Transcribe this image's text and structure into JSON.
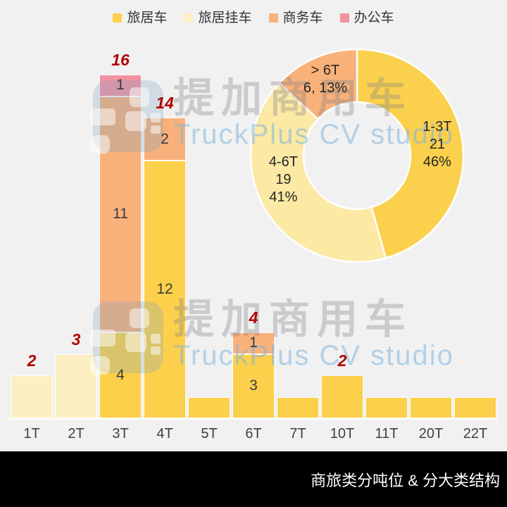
{
  "colors": {
    "background": "#F1F1F2",
    "total_label": "#B20000",
    "segment_label": "#3A3A3A",
    "axis_label": "#404040",
    "footer_bg": "#000000",
    "footer_text": "#FFFFFF"
  },
  "legend": {
    "items": [
      {
        "label": "旅居车",
        "color": "#FCD04B"
      },
      {
        "label": "旅居挂车",
        "color": "#FCF0C3"
      },
      {
        "label": "商务车",
        "color": "#F9B17C"
      },
      {
        "label": "办公车",
        "color": "#F192A1"
      }
    ]
  },
  "watermark": {
    "brand": "提加商用车",
    "subtitle": "TruckPlus CV studio"
  },
  "footer": {
    "title": "商旅类分吨位 & 分大类结构"
  },
  "chart_data": [
    {
      "type": "bar",
      "subtype": "stacked",
      "categories": [
        "1T",
        "2T",
        "3T",
        "4T",
        "5T",
        "6T",
        "7T",
        "10T",
        "11T",
        "20T",
        "22T"
      ],
      "series": [
        {
          "name": "旅居车",
          "color": "#FCD04B",
          "values": [
            0,
            0,
            4,
            12,
            1,
            3,
            1,
            2,
            1,
            1,
            1
          ]
        },
        {
          "name": "旅居挂车",
          "color": "#FCF0C3",
          "values": [
            2,
            3,
            0,
            0,
            0,
            0,
            0,
            0,
            0,
            0,
            0
          ]
        },
        {
          "name": "商务车",
          "color": "#F9B17C",
          "values": [
            0,
            0,
            11,
            2,
            0,
            1,
            0,
            0,
            0,
            0,
            0
          ]
        },
        {
          "name": "办公车",
          "color": "#F192A1",
          "values": [
            0,
            0,
            1,
            0,
            0,
            0,
            0,
            0,
            0,
            0,
            0
          ]
        }
      ],
      "totals": [
        2,
        3,
        16,
        14,
        1,
        4,
        1,
        2,
        1,
        1,
        1
      ],
      "ylim": [
        0,
        16
      ],
      "grid": false,
      "notes": "segment value labels shown only on multi-segment bars; dark-red italic totals shown above bars with total >= 2"
    },
    {
      "type": "donut",
      "slices": [
        {
          "label": "1-3T",
          "value": 21,
          "pct": 46,
          "color": "#FBD04D",
          "label_lines": [
            "1-3T",
            "21",
            "46%"
          ],
          "label_offset": [
            2,
            0
          ]
        },
        {
          "label": "4-6T",
          "value": 19,
          "pct": 41,
          "color": "#FBE9A4",
          "label_lines": [
            "4-6T",
            "19",
            "41%"
          ],
          "label_offset": [
            -8,
            -24
          ]
        },
        {
          "label": "> 6T",
          "value": 6,
          "pct": 13,
          "color": "#F8B179",
          "label_lines": [
            "> 6T",
            "6, 13%"
          ],
          "label_offset": [
            0,
            -4
          ]
        }
      ],
      "start_angle_deg": 0,
      "direction": "clockwise",
      "legend_position": "top"
    }
  ]
}
